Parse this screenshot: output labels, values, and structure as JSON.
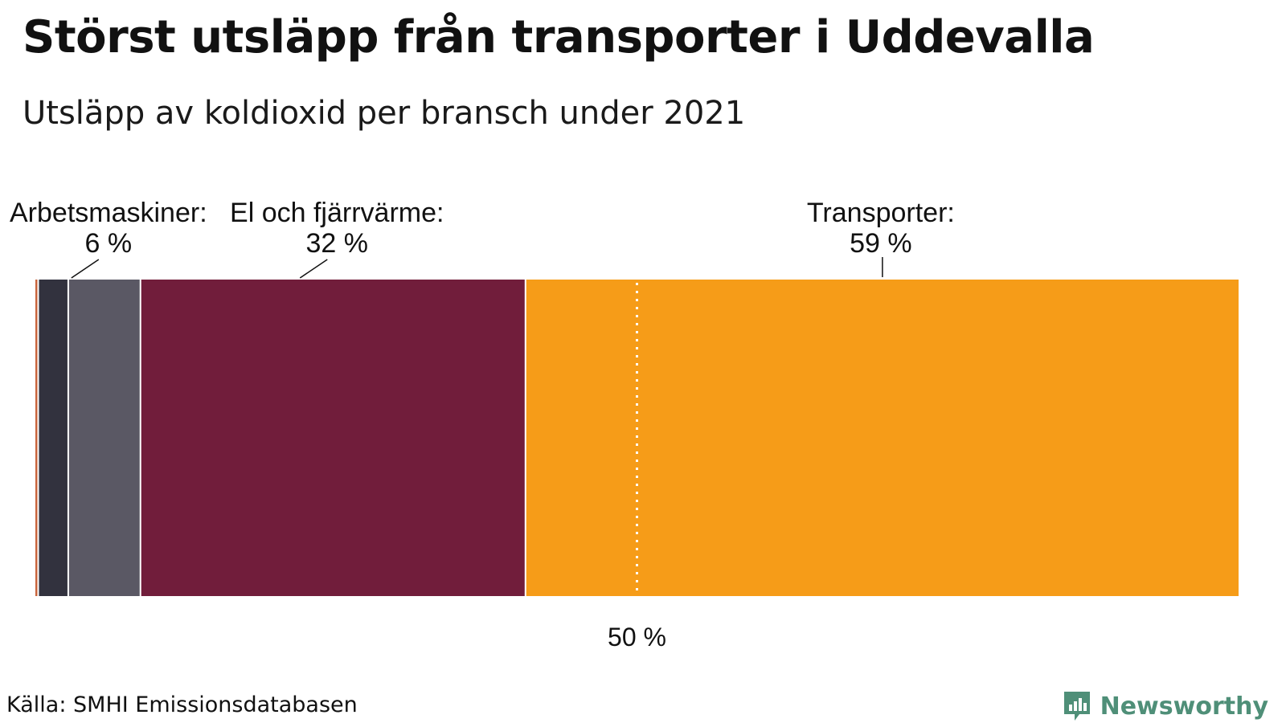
{
  "title": "Störst utsläpp från transporter i Uddevalla",
  "subtitle": "Utsläpp av koldioxid per bransch under 2021",
  "source": "Källa: SMHI Emissionsdatabasen",
  "brand": {
    "name": "Newsworthy",
    "icon": "newsworthy-logo-icon",
    "color": "#4f8f78"
  },
  "chart_data": {
    "type": "bar",
    "orientation": "horizontal-stacked-100",
    "unit": "%",
    "xlim": [
      0,
      100
    ],
    "segments": [
      {
        "value": 0.3,
        "color": "#c8643c",
        "label": "",
        "value_label": ""
      },
      {
        "value": 2.5,
        "color": "#32323e",
        "label": "",
        "value_label": ""
      },
      {
        "value": 6,
        "color": "#5a5864",
        "label": "Arbetsmaskiner:",
        "value_label": "6 %"
      },
      {
        "value": 32,
        "color": "#711d3b",
        "label": "El och fjärrvärme:",
        "value_label": "32 %"
      },
      {
        "value": 59.2,
        "color": "#f69c18",
        "label": "Transporter:",
        "value_label": "59 %"
      }
    ],
    "reference_line": {
      "value": 50,
      "label": "50 %"
    }
  }
}
